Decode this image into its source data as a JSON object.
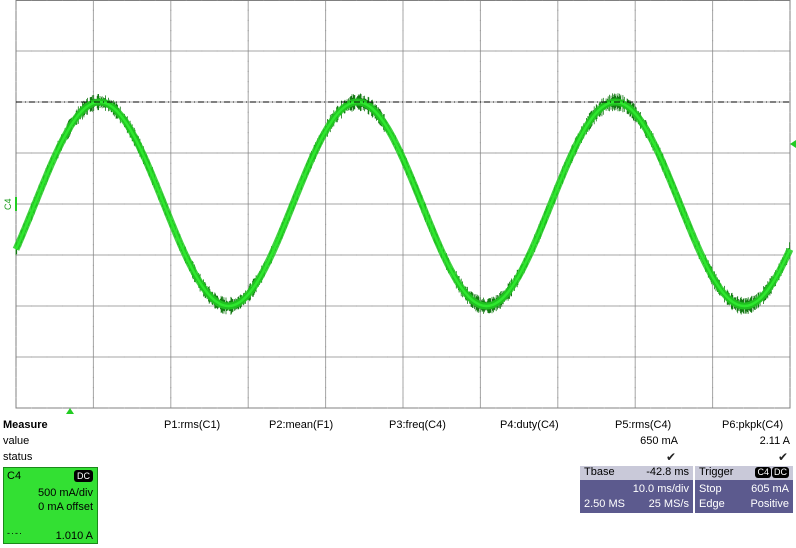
{
  "scope": {
    "channel_marker": "C4",
    "trace_color": "#22cc22",
    "trace_core_color": "#2ee82e",
    "trace_dark_color": "#147a14",
    "grid_color": "#808080",
    "trigger_line_color": "#000000",
    "marker_color": "#22cc22",
    "waveform": {
      "shape": "sine",
      "cycles": 3,
      "amplitude_a": 1.0,
      "offset_a": 0
    }
  },
  "measure": {
    "title": "Measure",
    "row_value": "value",
    "row_status": "status",
    "params": [
      {
        "name": "P1:rms(C1)",
        "value": "",
        "status": ""
      },
      {
        "name": "P2:mean(F1)",
        "value": "",
        "status": ""
      },
      {
        "name": "P3:freq(C4)",
        "value": "",
        "status": ""
      },
      {
        "name": "P4:duty(C4)",
        "value": "",
        "status": ""
      },
      {
        "name": "P5:rms(C4)",
        "value": "650 mA",
        "status": "✔"
      },
      {
        "name": "P6:pkpk(C4)",
        "value": "2.11 A",
        "status": "✔"
      }
    ]
  },
  "channel": {
    "label": "C4",
    "coupling": "DC",
    "scale": "500 mA/div",
    "offset": "0 mA offset",
    "readout": "1.010 A"
  },
  "timebase": {
    "label": "Tbase",
    "delay": "-42.8 ms",
    "scale": "10.0 ms/div",
    "samples": "2.50 MS",
    "rate": "25 MS/s"
  },
  "trigger": {
    "label": "Trigger",
    "source": "C4",
    "coupling": "DC",
    "mode": "Stop",
    "level": "605 mA",
    "type": "Edge",
    "slope": "Positive"
  }
}
